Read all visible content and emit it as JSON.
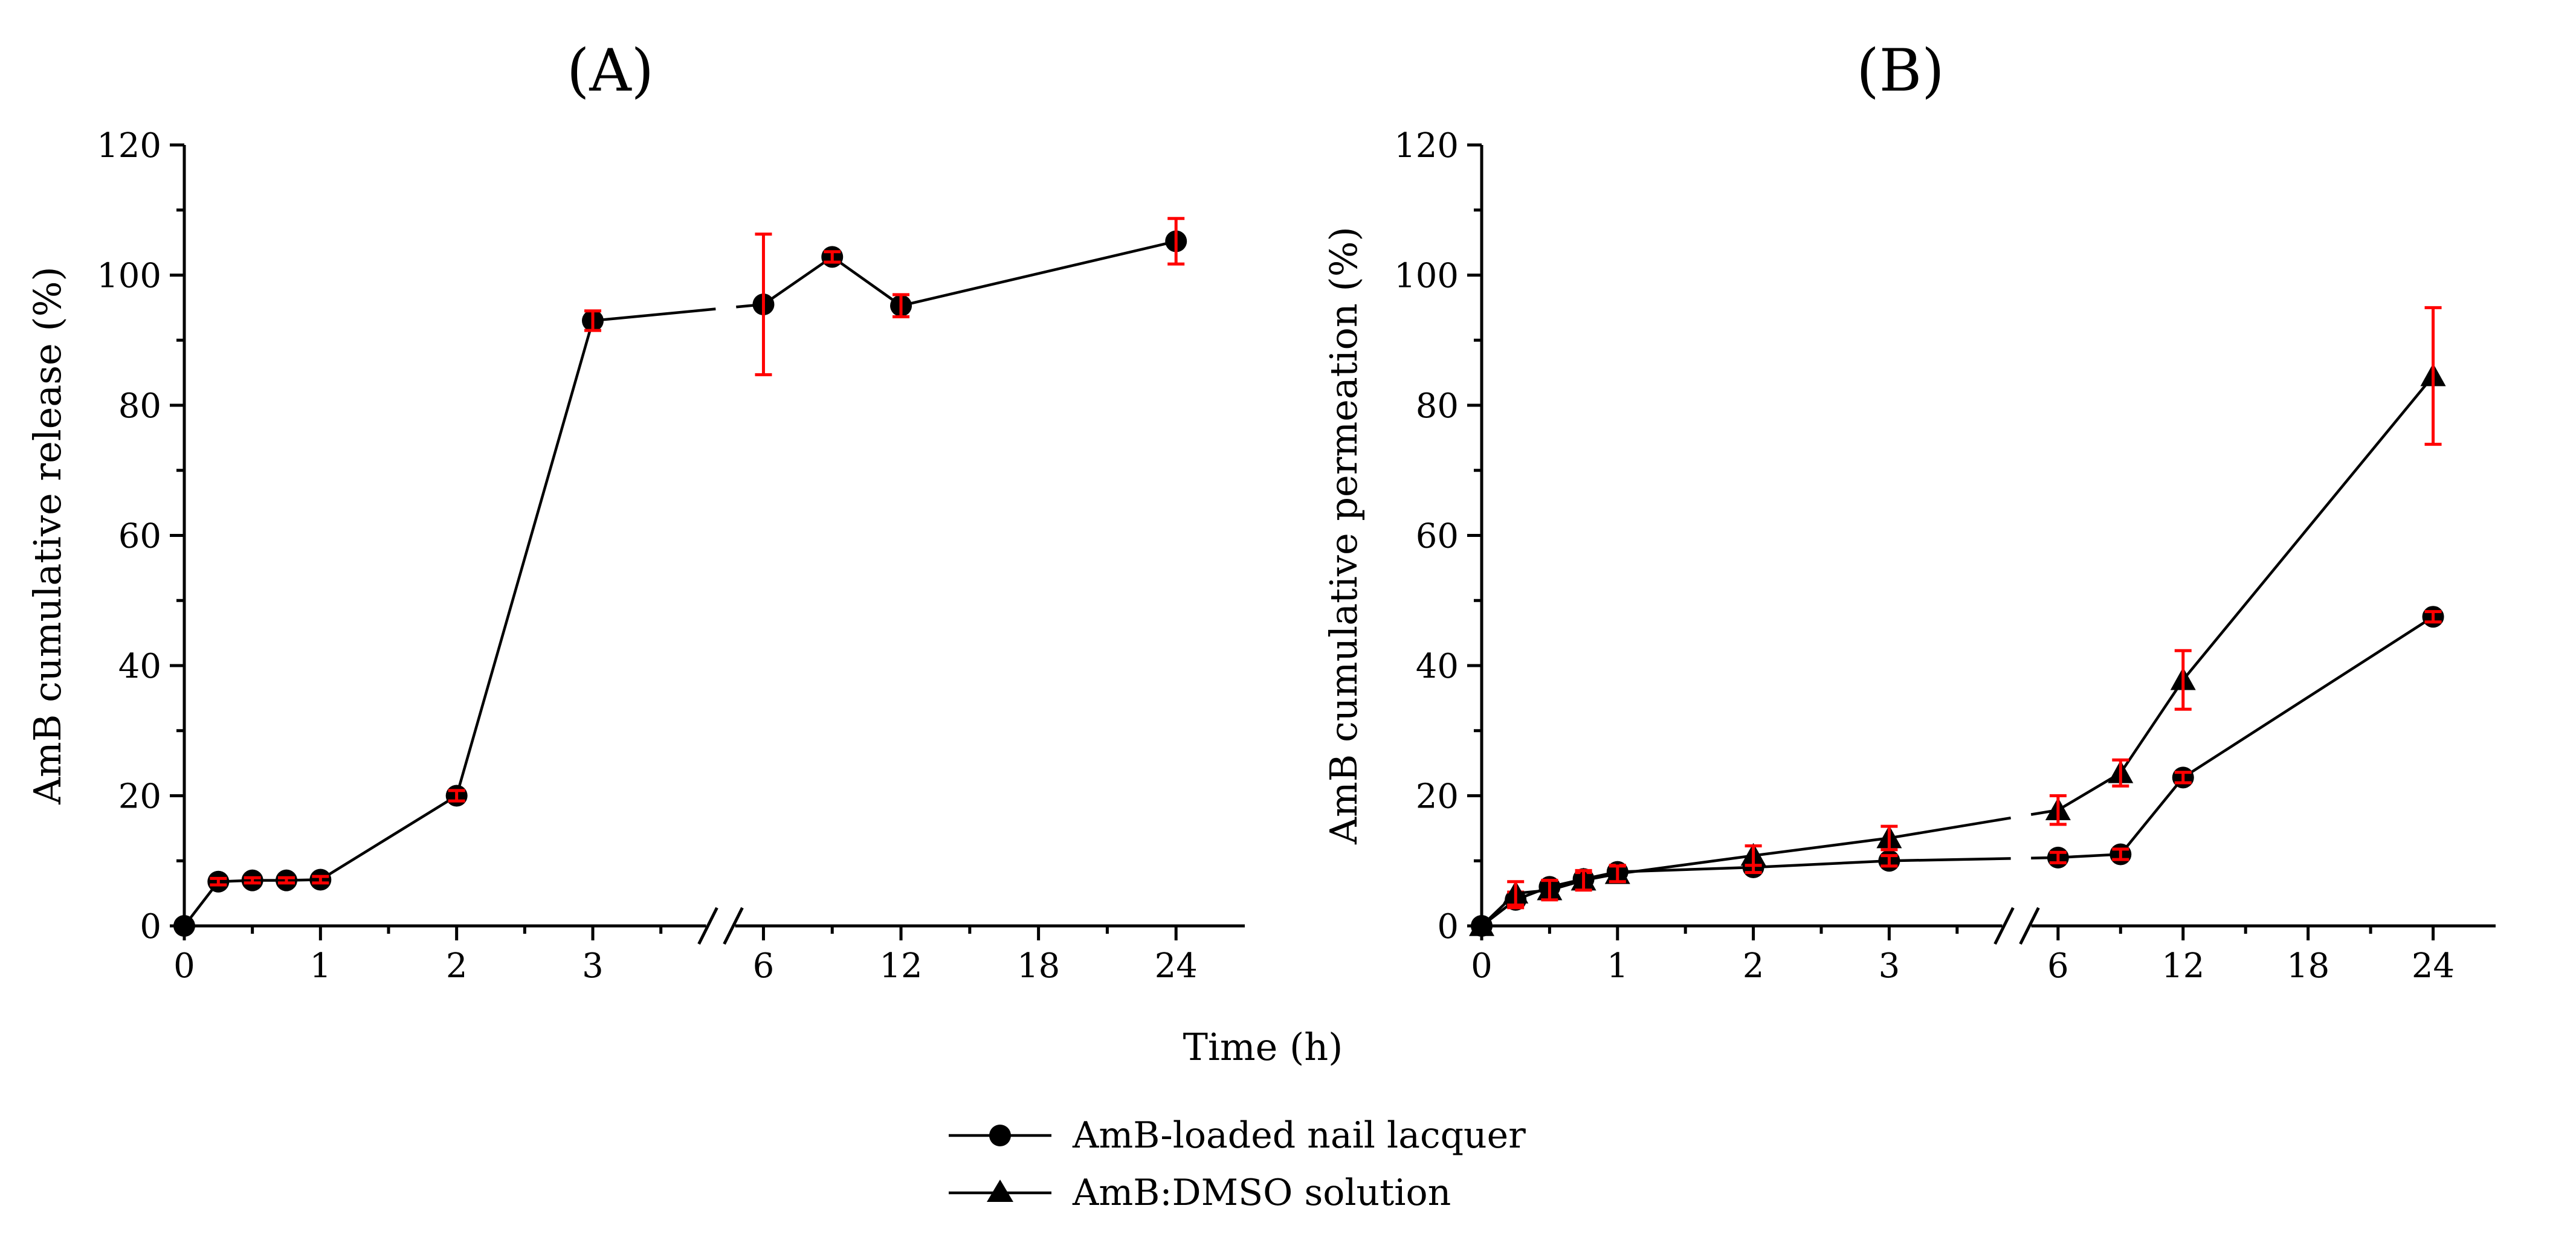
{
  "xlabel": "Time (h)",
  "legend": {
    "placement": "bottom-center",
    "entries": [
      {
        "label": "AmB-loaded nail lacquer",
        "marker": "circle"
      },
      {
        "label": "AmB:DMSO solution",
        "marker": "triangle"
      }
    ]
  },
  "colors": {
    "line": "#000000",
    "marker": "#000000",
    "error_bar": "#ff0000"
  },
  "chart_data": [
    {
      "type": "line",
      "panel": "A",
      "title": "(A)",
      "ylabel": "AmB cumulative release (%)",
      "ylim": [
        0,
        120
      ],
      "yticks": [
        0,
        20,
        40,
        60,
        80,
        100,
        120
      ],
      "xaxis_break": {
        "after": 3,
        "before": 6
      },
      "xticks": [
        0,
        1,
        2,
        3,
        6,
        12,
        18,
        24
      ],
      "grid": false,
      "series": [
        {
          "name": "AmB-loaded nail lacquer",
          "marker": "circle",
          "x": [
            0,
            0.25,
            0.5,
            0.75,
            1,
            2,
            3,
            6,
            9,
            12,
            24
          ],
          "y": [
            0,
            6.8,
            7.0,
            7.0,
            7.1,
            20.0,
            93.0,
            95.5,
            102.8,
            95.3,
            105.2
          ],
          "yerr": [
            0,
            0.5,
            0.4,
            0.4,
            0.5,
            0.8,
            1.5,
            10.8,
            0.8,
            1.7,
            3.5
          ]
        }
      ]
    },
    {
      "type": "line",
      "panel": "B",
      "title": "(B)",
      "ylabel": "AmB cumulative permeation (%)",
      "ylim": [
        0,
        120
      ],
      "yticks": [
        0,
        20,
        40,
        60,
        80,
        100,
        120
      ],
      "xaxis_break": {
        "after": 3,
        "before": 6
      },
      "xticks": [
        0,
        1,
        2,
        3,
        6,
        12,
        18,
        24
      ],
      "grid": false,
      "series": [
        {
          "name": "AmB-loaded nail lacquer",
          "marker": "circle",
          "x": [
            0,
            0.25,
            0.5,
            0.75,
            1,
            2,
            3,
            6,
            9,
            12,
            24
          ],
          "y": [
            0,
            4.0,
            6.0,
            7.2,
            8.3,
            9.0,
            10.0,
            10.5,
            11.0,
            22.8,
            47.5
          ],
          "yerr": [
            0,
            1.2,
            1.0,
            1.0,
            1.0,
            0.8,
            0.8,
            0.8,
            0.8,
            0.8,
            0.8
          ]
        },
        {
          "name": "AmB:DMSO solution",
          "marker": "triangle",
          "x": [
            0,
            0.25,
            0.5,
            0.75,
            1,
            2,
            3,
            6,
            9,
            12,
            24
          ],
          "y": [
            0,
            5.0,
            5.5,
            7.0,
            8.0,
            10.8,
            13.5,
            17.8,
            23.5,
            37.8,
            84.5
          ],
          "yerr": [
            0,
            1.8,
            1.5,
            1.5,
            1.2,
            1.5,
            1.8,
            2.2,
            2.0,
            4.5,
            10.5
          ]
        }
      ]
    }
  ]
}
